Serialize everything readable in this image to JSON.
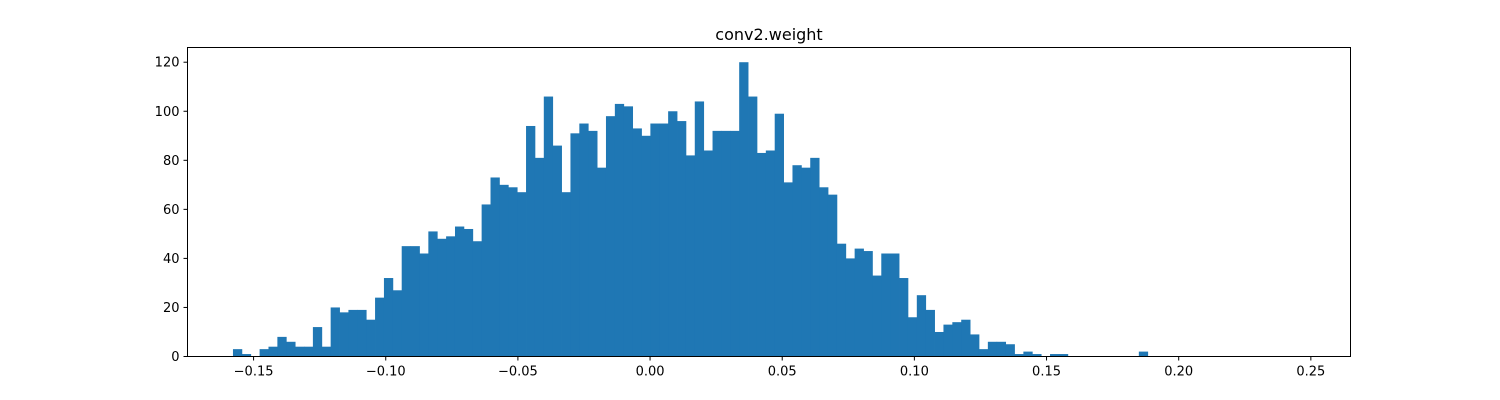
{
  "chart_data": {
    "type": "bar",
    "title": "conv2.weight",
    "xlabel": "",
    "ylabel": "",
    "color": "#1f77b4",
    "xlim": [
      -0.175,
      0.265
    ],
    "ylim": [
      0,
      126
    ],
    "x_ticks": [
      -0.15,
      -0.1,
      -0.05,
      0.0,
      0.05,
      0.1,
      0.15,
      0.2,
      0.25
    ],
    "x_tick_labels": [
      "−0.15",
      "−0.10",
      "−0.05",
      "0.00",
      "0.05",
      "0.10",
      "0.15",
      "0.20",
      "0.25"
    ],
    "y_ticks": [
      0,
      20,
      40,
      60,
      80,
      100,
      120
    ],
    "y_tick_labels": [
      "0",
      "20",
      "40",
      "60",
      "80",
      "100",
      "120"
    ],
    "grid": false,
    "bin_start": -0.1578,
    "bin_width": 0.00336,
    "values": [
      3,
      1,
      0,
      3,
      4,
      8,
      6,
      4,
      4,
      12,
      4,
      20,
      18,
      19,
      19,
      15,
      24,
      32,
      27,
      45,
      45,
      42,
      51,
      48,
      49,
      53,
      52,
      47,
      62,
      73,
      70,
      69,
      67,
      94,
      81,
      106,
      86,
      67,
      91,
      95,
      92,
      77,
      98,
      103,
      102,
      93,
      90,
      95,
      95,
      100,
      96,
      82,
      104,
      84,
      92,
      92,
      92,
      120,
      106,
      83,
      84,
      99,
      71,
      78,
      77,
      81,
      69,
      66,
      46,
      40,
      44,
      43,
      33,
      42,
      42,
      32,
      16,
      25,
      19,
      10,
      13,
      14,
      15,
      9,
      3,
      6,
      6,
      5,
      1,
      2,
      1,
      0,
      1,
      1,
      0,
      0,
      0,
      0,
      0,
      0,
      0,
      0,
      2,
      0
    ]
  }
}
